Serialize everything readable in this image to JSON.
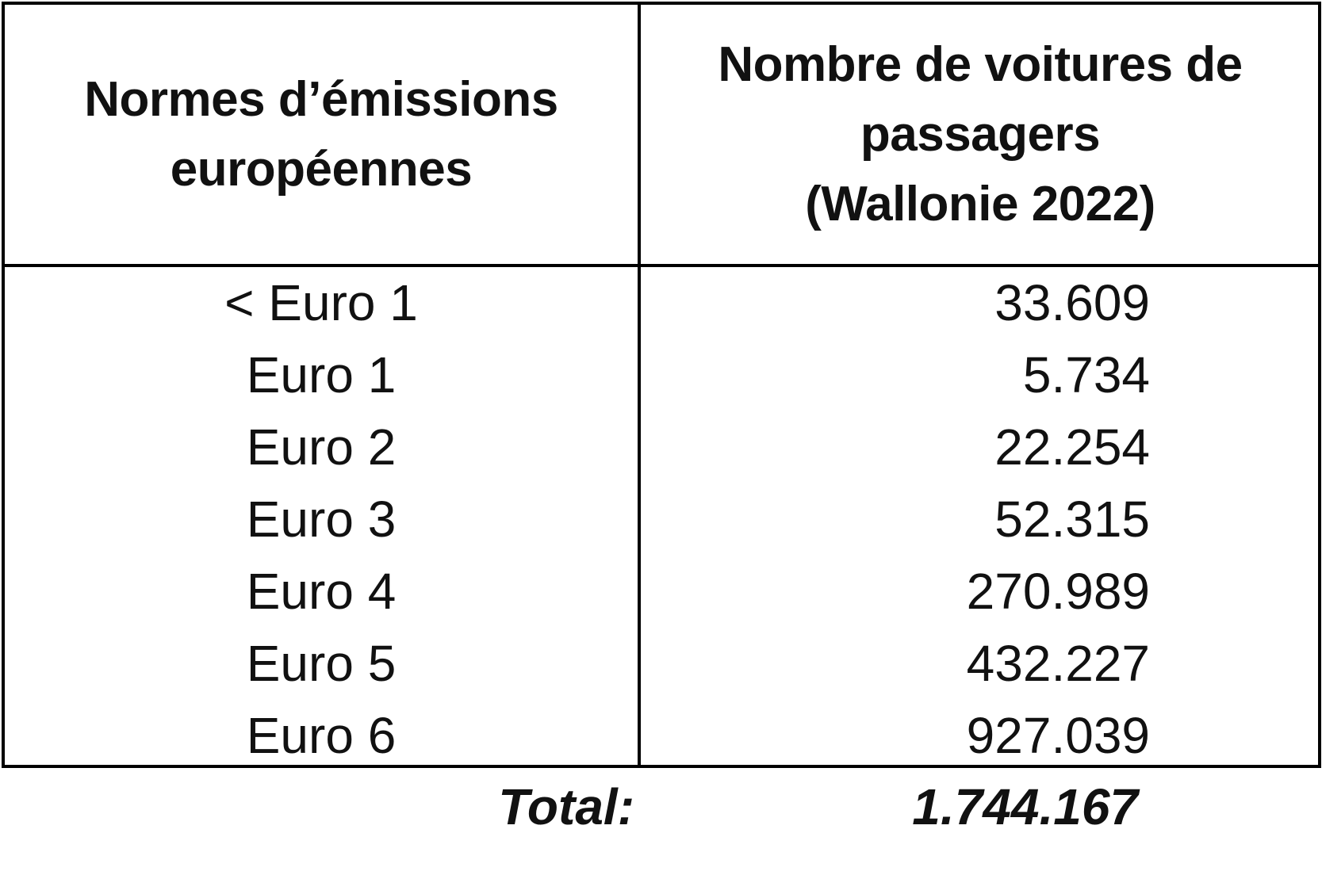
{
  "table": {
    "header": {
      "col1_lines": [
        "Normes d’émissions",
        "européennes"
      ],
      "col2_lines": [
        "Nombre de voitures de",
        "passagers",
        "(Wallonie 2022)"
      ]
    },
    "rows": [
      {
        "norm": "< Euro 1",
        "count": "33.609"
      },
      {
        "norm": "Euro 1",
        "count": "5.734"
      },
      {
        "norm": "Euro 2",
        "count": "22.254"
      },
      {
        "norm": "Euro 3",
        "count": "52.315"
      },
      {
        "norm": "Euro 4",
        "count": "270.989"
      },
      {
        "norm": "Euro 5",
        "count": "432.227"
      },
      {
        "norm": "Euro 6",
        "count": "927.039"
      }
    ],
    "total": {
      "label": "Total:",
      "value": "1.744.167"
    }
  }
}
